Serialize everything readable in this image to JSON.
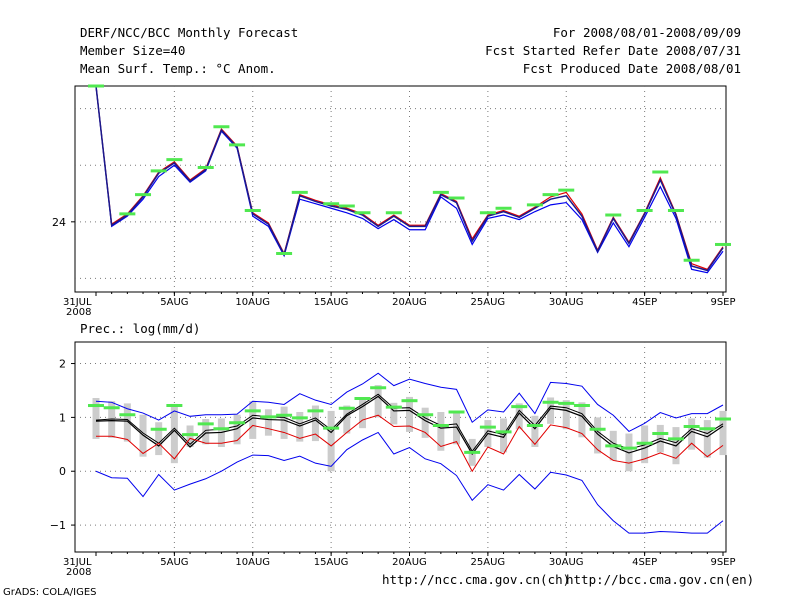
{
  "header": {
    "left": [
      "DERF/NCC/BCC Monthly Forecast",
      "Member Size=40",
      "Mean Surf. Temp.: °C Anom."
    ],
    "right": [
      "For 2008/08/01-2008/09/09",
      "Fcst Started Refer Date 2008/07/31",
      "Fcst Produced Date 2008/08/01"
    ]
  },
  "footer": {
    "grads": "GrADS: COLA/IGES",
    "url_ch": "http://ncc.cma.gov.cn(ch)",
    "url_en": "http://bcc.cma.gov.cn(en)"
  },
  "colors": {
    "grid": "#7a7a7a",
    "ensemble_mean_temp": "#1a1a8c",
    "member_red": "#e00000",
    "member_blue": "#0000ee",
    "member_black": "#000000",
    "observed_marker": "#50e850",
    "spread_bar": "#cccccc"
  },
  "chart_data": [
    {
      "type": "line",
      "title": "Mean Surf. Temp.: °C Anom.",
      "xlabel": "",
      "ylabel": "",
      "x_dates": [
        "2008-07-31",
        "2008-08-01",
        "2008-08-02",
        "2008-08-03",
        "2008-08-04",
        "2008-08-05",
        "2008-08-06",
        "2008-08-07",
        "2008-08-08",
        "2008-08-09",
        "2008-08-10",
        "2008-08-11",
        "2008-08-12",
        "2008-08-13",
        "2008-08-14",
        "2008-08-15",
        "2008-08-16",
        "2008-08-17",
        "2008-08-18",
        "2008-08-19",
        "2008-08-20",
        "2008-08-21",
        "2008-08-22",
        "2008-08-23",
        "2008-08-24",
        "2008-08-25",
        "2008-08-26",
        "2008-08-27",
        "2008-08-28",
        "2008-08-29",
        "2008-08-30",
        "2008-08-31",
        "2008-09-01",
        "2008-09-02",
        "2008-09-03",
        "2008-09-04",
        "2008-09-05",
        "2008-09-06",
        "2008-09-07",
        "2008-09-08",
        "2008-09-09"
      ],
      "x_tick_labels": [
        "31JUL\n2008",
        "5AUG",
        "10AUG",
        "15AUG",
        "20AUG",
        "25AUG",
        "30AUG",
        "4SEP",
        "9SEP"
      ],
      "x_tick_index": [
        0,
        5,
        10,
        15,
        20,
        25,
        30,
        35,
        40
      ],
      "ylim": [
        23.38,
        25.2
      ],
      "y_ticks": [
        24
      ],
      "y_grid": [
        23.5,
        24.5,
        25.0
      ],
      "grid": true,
      "series": [
        {
          "name": "blue",
          "values": [
            25.2,
            23.96,
            24.05,
            24.2,
            24.4,
            24.5,
            24.35,
            24.45,
            24.8,
            24.65,
            24.05,
            23.96,
            23.7,
            24.2,
            24.16,
            24.12,
            24.08,
            24.03,
            23.94,
            24.02,
            23.93,
            23.93,
            24.22,
            24.12,
            23.8,
            24.03,
            24.06,
            24.02,
            24.09,
            24.15,
            24.17,
            24.02,
            23.73,
            23.99,
            23.78,
            24.04,
            24.31,
            24.03,
            23.58,
            23.55,
            23.74
          ]
        },
        {
          "name": "red",
          "values": [
            25.2,
            23.98,
            24.07,
            24.23,
            24.44,
            24.53,
            24.37,
            24.47,
            24.82,
            24.67,
            24.08,
            23.99,
            23.72,
            24.24,
            24.19,
            24.15,
            24.12,
            24.07,
            23.97,
            24.06,
            23.97,
            23.97,
            24.25,
            24.18,
            23.85,
            24.06,
            24.1,
            24.05,
            24.13,
            24.22,
            24.26,
            24.07,
            23.75,
            24.04,
            23.82,
            24.08,
            24.39,
            24.07,
            23.63,
            23.58,
            23.78
          ]
        },
        {
          "name": "black",
          "values": [
            25.2,
            23.97,
            24.06,
            24.22,
            24.43,
            24.52,
            24.36,
            24.46,
            24.81,
            24.66,
            24.07,
            23.98,
            23.71,
            24.23,
            24.18,
            24.14,
            24.11,
            24.06,
            23.96,
            24.05,
            23.96,
            23.96,
            24.24,
            24.17,
            23.83,
            24.05,
            24.09,
            24.04,
            24.12,
            24.2,
            24.23,
            24.05,
            23.74,
            24.03,
            23.81,
            24.07,
            24.37,
            24.06,
            23.61,
            23.57,
            23.77
          ]
        }
      ],
      "observed_markers": [
        25.2,
        null,
        24.07,
        24.24,
        24.45,
        24.55,
        null,
        24.48,
        24.84,
        24.68,
        24.1,
        null,
        23.72,
        24.26,
        null,
        24.16,
        24.14,
        24.08,
        null,
        24.08,
        null,
        null,
        24.26,
        24.21,
        null,
        24.08,
        24.12,
        null,
        24.15,
        24.24,
        24.28,
        null,
        null,
        24.06,
        null,
        24.1,
        24.44,
        24.1,
        23.66,
        null,
        23.8
      ]
    },
    {
      "type": "line",
      "title": "Prec.: log(mm/d)",
      "xlabel": "",
      "ylabel": "",
      "x_tick_labels": [
        "31JUL\n2008",
        "5AUG",
        "10AUG",
        "15AUG",
        "20AUG",
        "25AUG",
        "30AUG",
        "4SEP",
        "9SEP"
      ],
      "x_tick_index": [
        0,
        5,
        10,
        15,
        20,
        25,
        30,
        35,
        40
      ],
      "ylim": [
        -1.5,
        2.4
      ],
      "y_ticks": [
        -1,
        0,
        1,
        2
      ],
      "grid": true,
      "series": [
        {
          "name": "upper",
          "values": [
            1.3,
            1.28,
            1.16,
            1.08,
            0.95,
            1.12,
            1.02,
            1.05,
            1.05,
            1.06,
            1.3,
            1.28,
            1.24,
            1.44,
            1.32,
            1.24,
            1.47,
            1.62,
            1.82,
            1.59,
            1.71,
            1.63,
            1.56,
            1.52,
            0.91,
            1.14,
            1.1,
            1.45,
            1.07,
            1.65,
            1.63,
            1.58,
            1.24,
            1.04,
            0.74,
            0.89,
            1.09,
            0.99,
            1.07,
            1.07,
            1.23
          ]
        },
        {
          "name": "mean",
          "values": [
            0.93,
            0.94,
            0.93,
            0.67,
            0.47,
            0.76,
            0.45,
            0.71,
            0.72,
            0.79,
            0.99,
            0.96,
            0.95,
            0.84,
            0.95,
            0.72,
            1.03,
            1.2,
            1.39,
            1.12,
            1.13,
            0.94,
            0.8,
            0.82,
            0.32,
            0.7,
            0.63,
            1.08,
            0.79,
            1.17,
            1.13,
            1.02,
            0.69,
            0.46,
            0.34,
            0.43,
            0.56,
            0.47,
            0.74,
            0.64,
            0.84
          ]
        },
        {
          "name": "upper_member",
          "values": [
            0.95,
            0.97,
            0.96,
            0.71,
            0.52,
            0.8,
            0.5,
            0.76,
            0.78,
            0.84,
            1.04,
            1.01,
            1.0,
            0.88,
            0.99,
            0.77,
            1.06,
            1.24,
            1.43,
            1.17,
            1.18,
            0.99,
            0.85,
            0.88,
            0.37,
            0.75,
            0.68,
            1.13,
            0.85,
            1.21,
            1.18,
            1.07,
            0.74,
            0.52,
            0.41,
            0.49,
            0.61,
            0.53,
            0.79,
            0.7,
            0.88
          ]
        },
        {
          "name": "lower_member",
          "values": [
            0.65,
            0.65,
            0.59,
            0.33,
            0.52,
            0.23,
            0.61,
            0.52,
            0.52,
            0.57,
            0.85,
            0.79,
            0.72,
            0.61,
            0.69,
            0.47,
            0.72,
            0.95,
            1.04,
            0.83,
            0.84,
            0.72,
            0.46,
            0.55,
            0.0,
            0.45,
            0.32,
            0.83,
            0.5,
            0.86,
            0.81,
            0.7,
            0.4,
            0.2,
            0.15,
            0.23,
            0.34,
            0.24,
            0.52,
            0.27,
            0.48
          ]
        },
        {
          "name": "lower",
          "values": [
            0.0,
            -0.12,
            -0.13,
            -0.47,
            -0.06,
            -0.35,
            -0.24,
            -0.14,
            0.0,
            0.17,
            0.3,
            0.29,
            0.2,
            0.28,
            0.15,
            0.09,
            0.4,
            0.58,
            0.72,
            0.32,
            0.44,
            0.23,
            0.14,
            -0.08,
            -0.54,
            -0.25,
            -0.35,
            -0.06,
            -0.33,
            -0.02,
            -0.07,
            -0.17,
            -0.62,
            -0.92,
            -1.15,
            -1.15,
            -1.12,
            -1.13,
            -1.15,
            -1.15,
            -0.92
          ]
        }
      ],
      "spread_bars": {
        "low": [
          0.6,
          0.62,
          0.55,
          0.27,
          0.3,
          0.15,
          0.45,
          0.5,
          0.45,
          0.5,
          0.6,
          0.66,
          0.6,
          0.55,
          0.56,
          0.0,
          0.7,
          0.8,
          1.0,
          0.87,
          0.73,
          0.62,
          0.38,
          0.5,
          0.1,
          0.45,
          0.35,
          0.78,
          0.45,
          0.88,
          0.78,
          0.63,
          0.33,
          0.2,
          0.0,
          0.15,
          0.35,
          0.13,
          0.4,
          0.25,
          0.3
        ],
        "high": [
          1.36,
          1.3,
          1.26,
          1.05,
          0.91,
          1.25,
          0.85,
          0.97,
          0.98,
          1.05,
          1.3,
          1.15,
          1.2,
          1.1,
          1.22,
          1.12,
          1.22,
          1.35,
          1.6,
          1.27,
          1.38,
          1.18,
          1.1,
          1.12,
          0.6,
          0.95,
          0.98,
          1.26,
          1.03,
          1.37,
          1.32,
          1.28,
          1.0,
          0.75,
          0.7,
          0.85,
          0.86,
          0.82,
          0.98,
          0.95,
          1.12
        ]
      },
      "observed_markers": [
        1.22,
        1.18,
        1.05,
        null,
        0.78,
        1.22,
        0.68,
        0.88,
        0.79,
        0.9,
        1.12,
        1.01,
        1.04,
        0.99,
        1.12,
        0.8,
        1.17,
        1.35,
        1.55,
        1.19,
        1.31,
        1.05,
        0.85,
        1.1,
        0.35,
        0.82,
        0.73,
        1.2,
        0.85,
        1.28,
        1.26,
        1.22,
        0.78,
        0.47,
        0.43,
        0.52,
        0.7,
        0.6,
        0.83,
        0.79,
        0.97
      ]
    }
  ]
}
